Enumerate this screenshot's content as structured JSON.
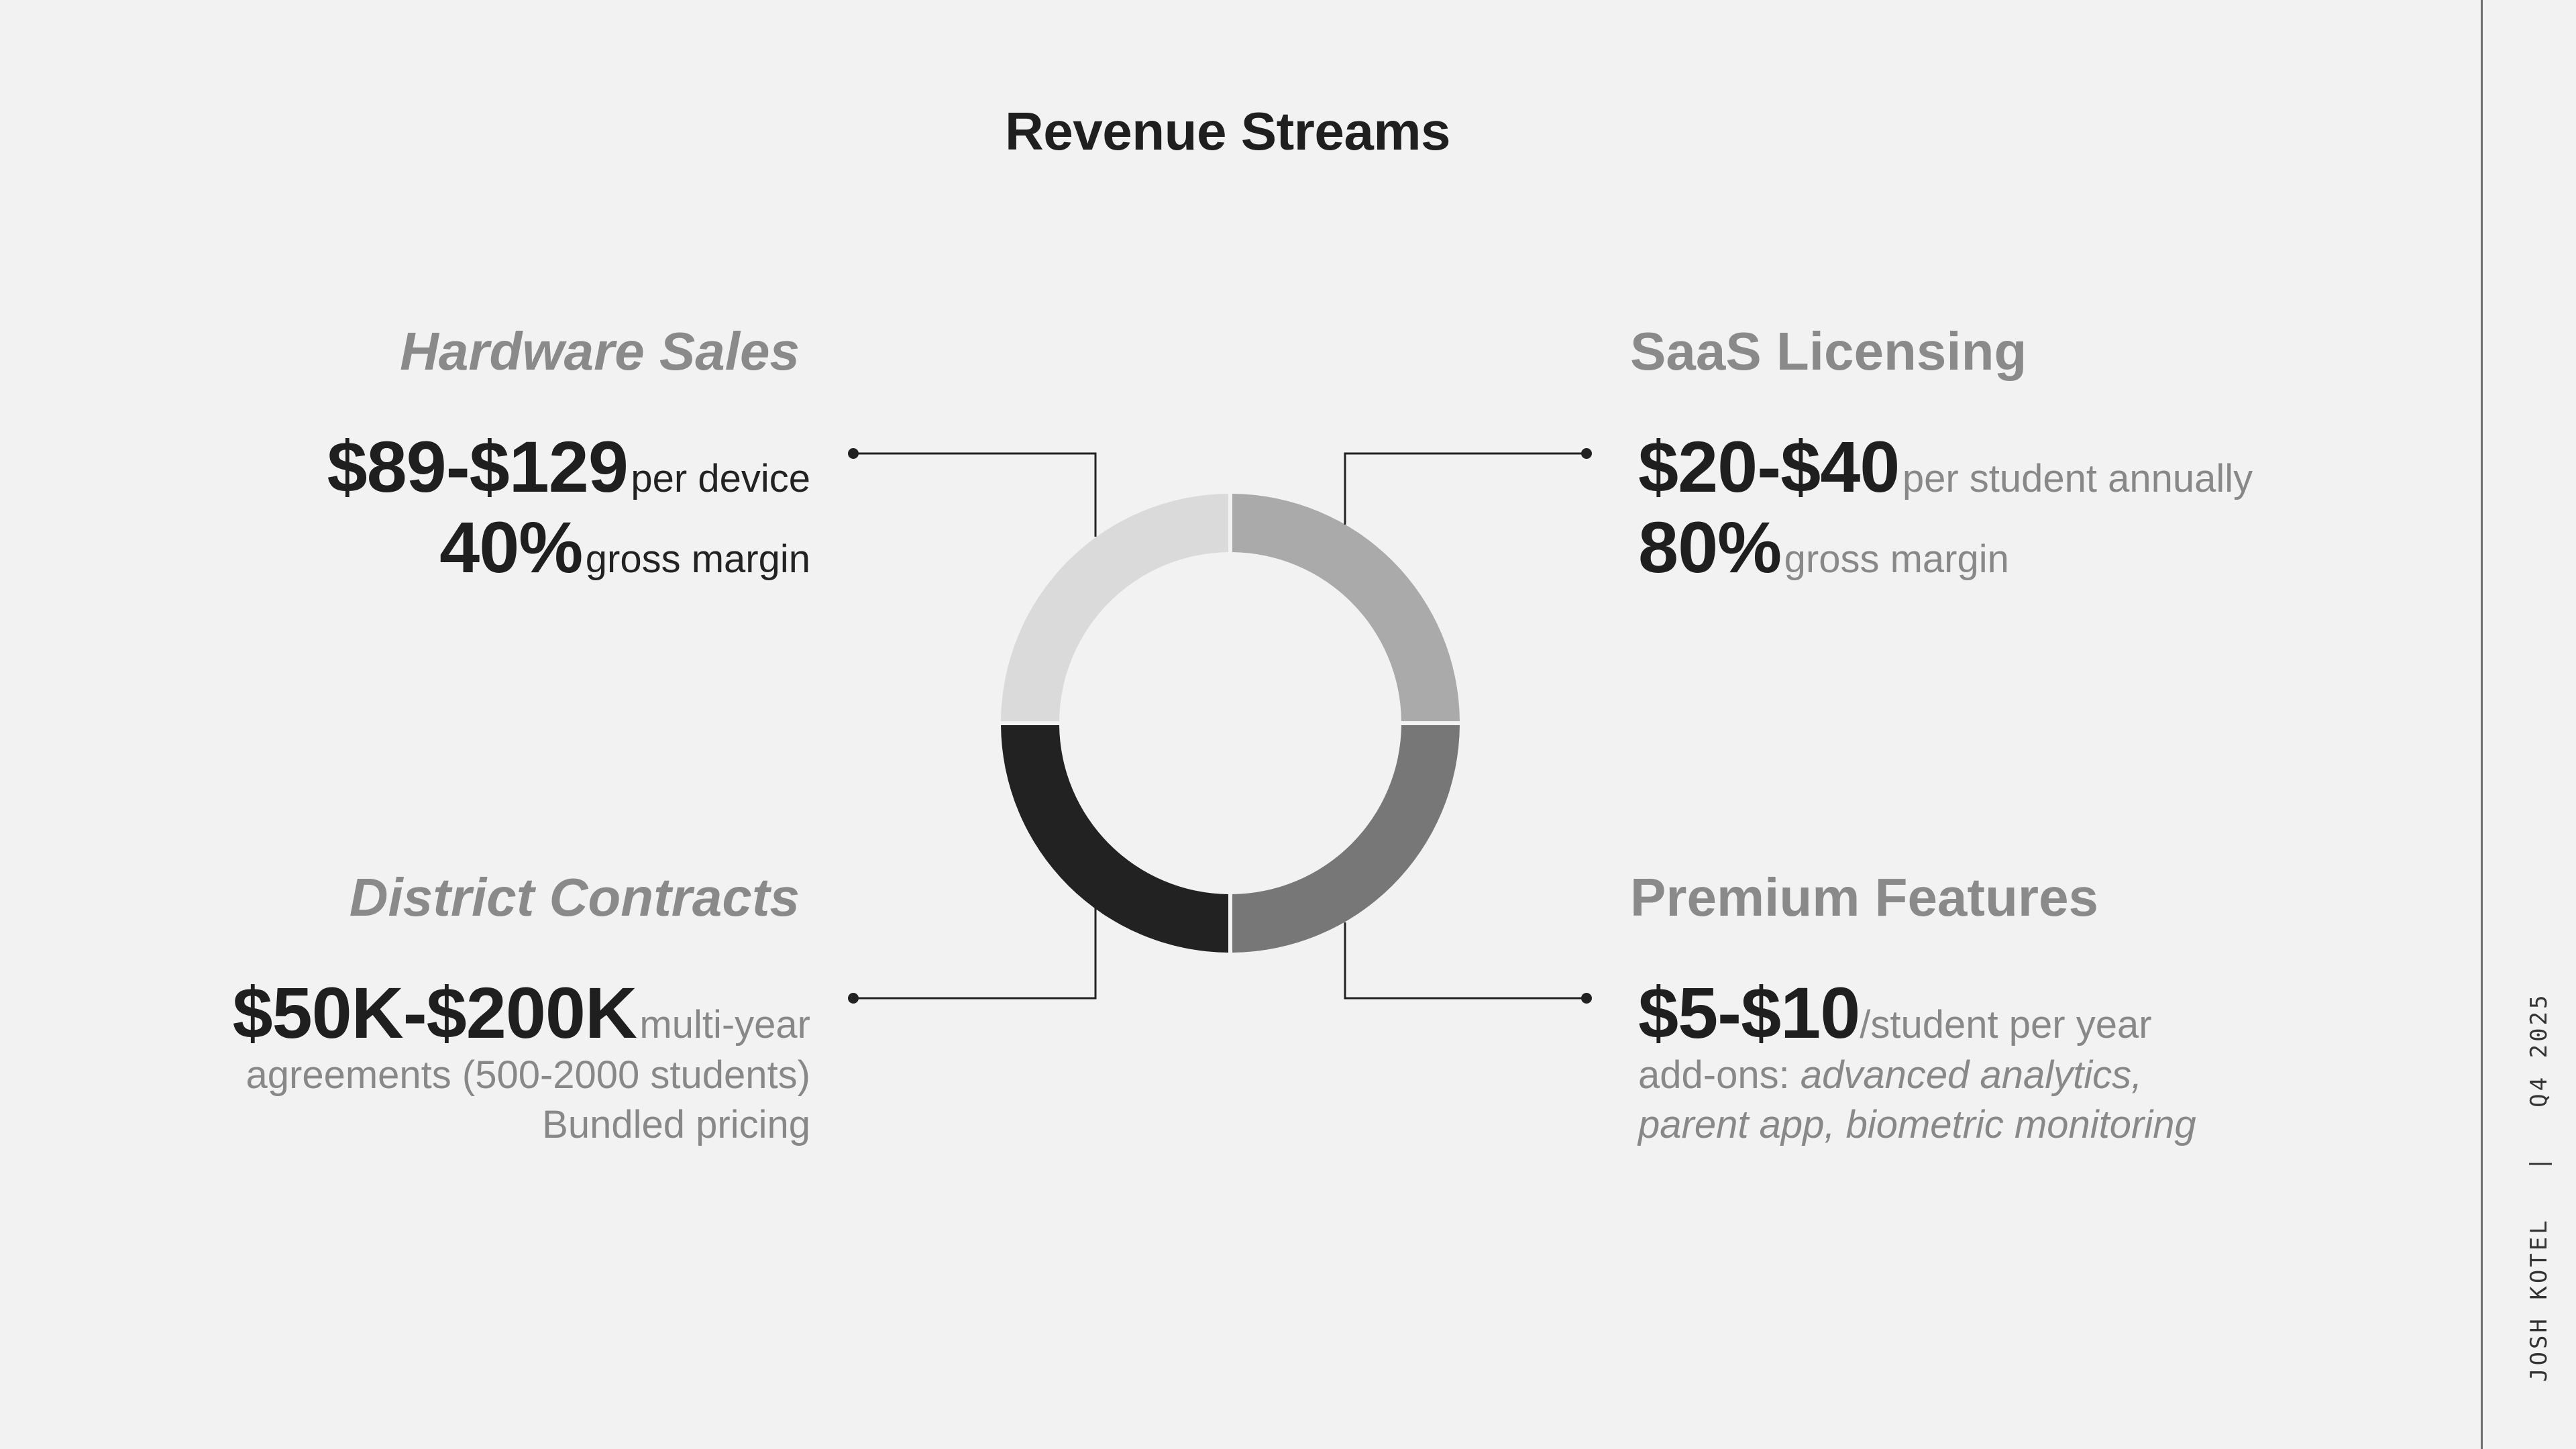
{
  "title": "Revenue Streams",
  "streams": {
    "hardware": {
      "heading": "Hardware Sales",
      "price": "$89-$129",
      "price_note": "per device",
      "margin": "40%",
      "margin_note": "gross margin"
    },
    "saas": {
      "heading": "SaaS Licensing",
      "price": "$20-$40",
      "price_note": "per student annually",
      "margin": "80%",
      "margin_note": "gross margin"
    },
    "district": {
      "heading": "District Contracts",
      "price": "$50K-$200K",
      "price_note": "multi-year",
      "line2": "agreements (500-2000 students)",
      "line3": "Bundled pricing"
    },
    "premium": {
      "heading": "Premium Features",
      "price": "$5-$10",
      "price_note": "/student per year",
      "addons_label": "add-ons:",
      "addons_items_1": "advanced analytics,",
      "addons_items_2": "parent app, biometric monitoring"
    }
  },
  "donut": {
    "segments": [
      {
        "id": "saas",
        "color": "#aaaaaa"
      },
      {
        "id": "premium",
        "color": "#777777"
      },
      {
        "id": "district",
        "color": "#222222"
      },
      {
        "id": "hardware",
        "color": "#dadada"
      }
    ]
  },
  "footer": {
    "author": "JOSH KOTEL",
    "separator": "|",
    "period": "Q4 2025"
  }
}
